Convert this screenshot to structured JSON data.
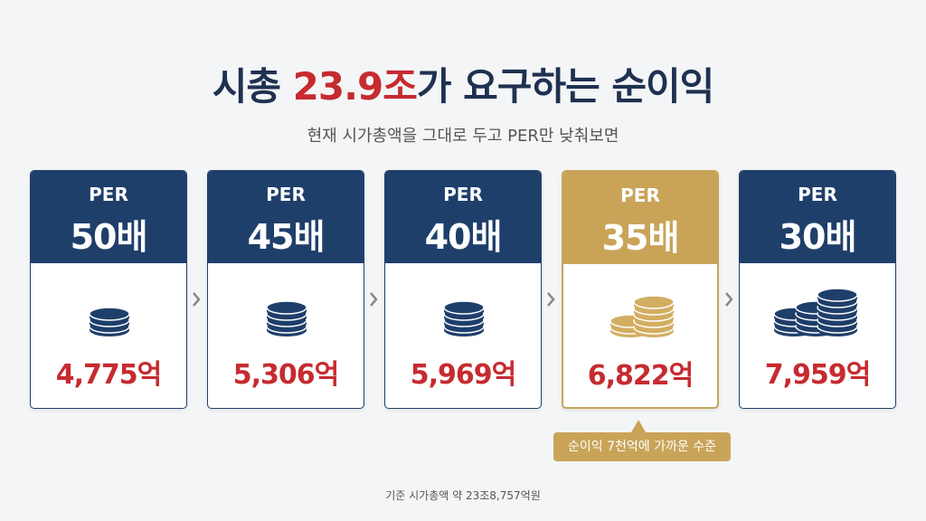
{
  "header": {
    "title_prefix": "시총 ",
    "title_highlight": "23.9조",
    "title_suffix": "가 요구하는 순이익",
    "subtitle": "현재 시가총액을 그대로 두고 PER만 낮춰보면"
  },
  "cards": [
    {
      "label": "PER",
      "multiple": "50배",
      "profit": "4,775억"
    },
    {
      "label": "PER",
      "multiple": "45배",
      "profit": "5,306억"
    },
    {
      "label": "PER",
      "multiple": "40배",
      "profit": "5,969억"
    },
    {
      "label": "PER",
      "multiple": "35배",
      "profit": "6,822억"
    },
    {
      "label": "PER",
      "multiple": "30배",
      "profit": "7,959억"
    }
  ],
  "callout": "순이익 7천억에 가까운 수준",
  "footnote": "기준 시가총액 약 23조8,757억원"
}
